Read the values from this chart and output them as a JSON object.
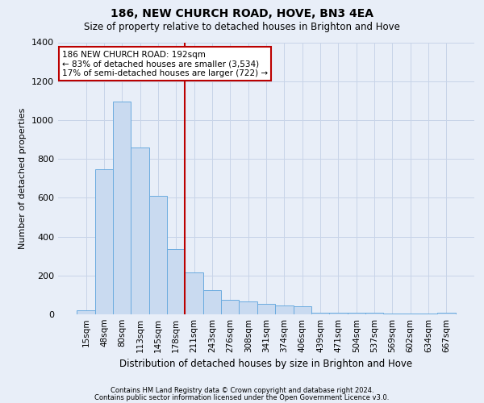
{
  "title": "186, NEW CHURCH ROAD, HOVE, BN3 4EA",
  "subtitle": "Size of property relative to detached houses in Brighton and Hove",
  "xlabel": "Distribution of detached houses by size in Brighton and Hove",
  "ylabel": "Number of detached properties",
  "footer_line1": "Contains HM Land Registry data © Crown copyright and database right 2024.",
  "footer_line2": "Contains public sector information licensed under the Open Government Licence v3.0.",
  "bar_labels": [
    "15sqm",
    "48sqm",
    "80sqm",
    "113sqm",
    "145sqm",
    "178sqm",
    "211sqm",
    "243sqm",
    "276sqm",
    "308sqm",
    "341sqm",
    "374sqm",
    "406sqm",
    "439sqm",
    "471sqm",
    "504sqm",
    "537sqm",
    "569sqm",
    "602sqm",
    "634sqm",
    "667sqm"
  ],
  "bar_values": [
    20,
    745,
    1095,
    860,
    610,
    335,
    215,
    125,
    75,
    65,
    55,
    45,
    40,
    10,
    10,
    10,
    10,
    5,
    5,
    5,
    10
  ],
  "bar_color": "#c9daf0",
  "bar_edge_color": "#6aabdf",
  "grid_color": "#c8d4e8",
  "annotation_text": "186 NEW CHURCH ROAD: 192sqm\n← 83% of detached houses are smaller (3,534)\n17% of semi-detached houses are larger (722) →",
  "annotation_box_color": "#ffffff",
  "annotation_box_edge": "#bb0000",
  "property_line_x": 5.5,
  "property_line_color": "#bb0000",
  "ylim": [
    0,
    1400
  ],
  "yticks": [
    0,
    200,
    400,
    600,
    800,
    1000,
    1200,
    1400
  ],
  "background_color": "#e8eef8",
  "plot_background": "#e8eef8",
  "title_fontsize": 10,
  "subtitle_fontsize": 8.5,
  "ylabel_fontsize": 8,
  "xlabel_fontsize": 8.5,
  "tick_fontsize": 7.5,
  "ytick_fontsize": 8,
  "annotation_fontsize": 7.5,
  "footer_fontsize": 6
}
